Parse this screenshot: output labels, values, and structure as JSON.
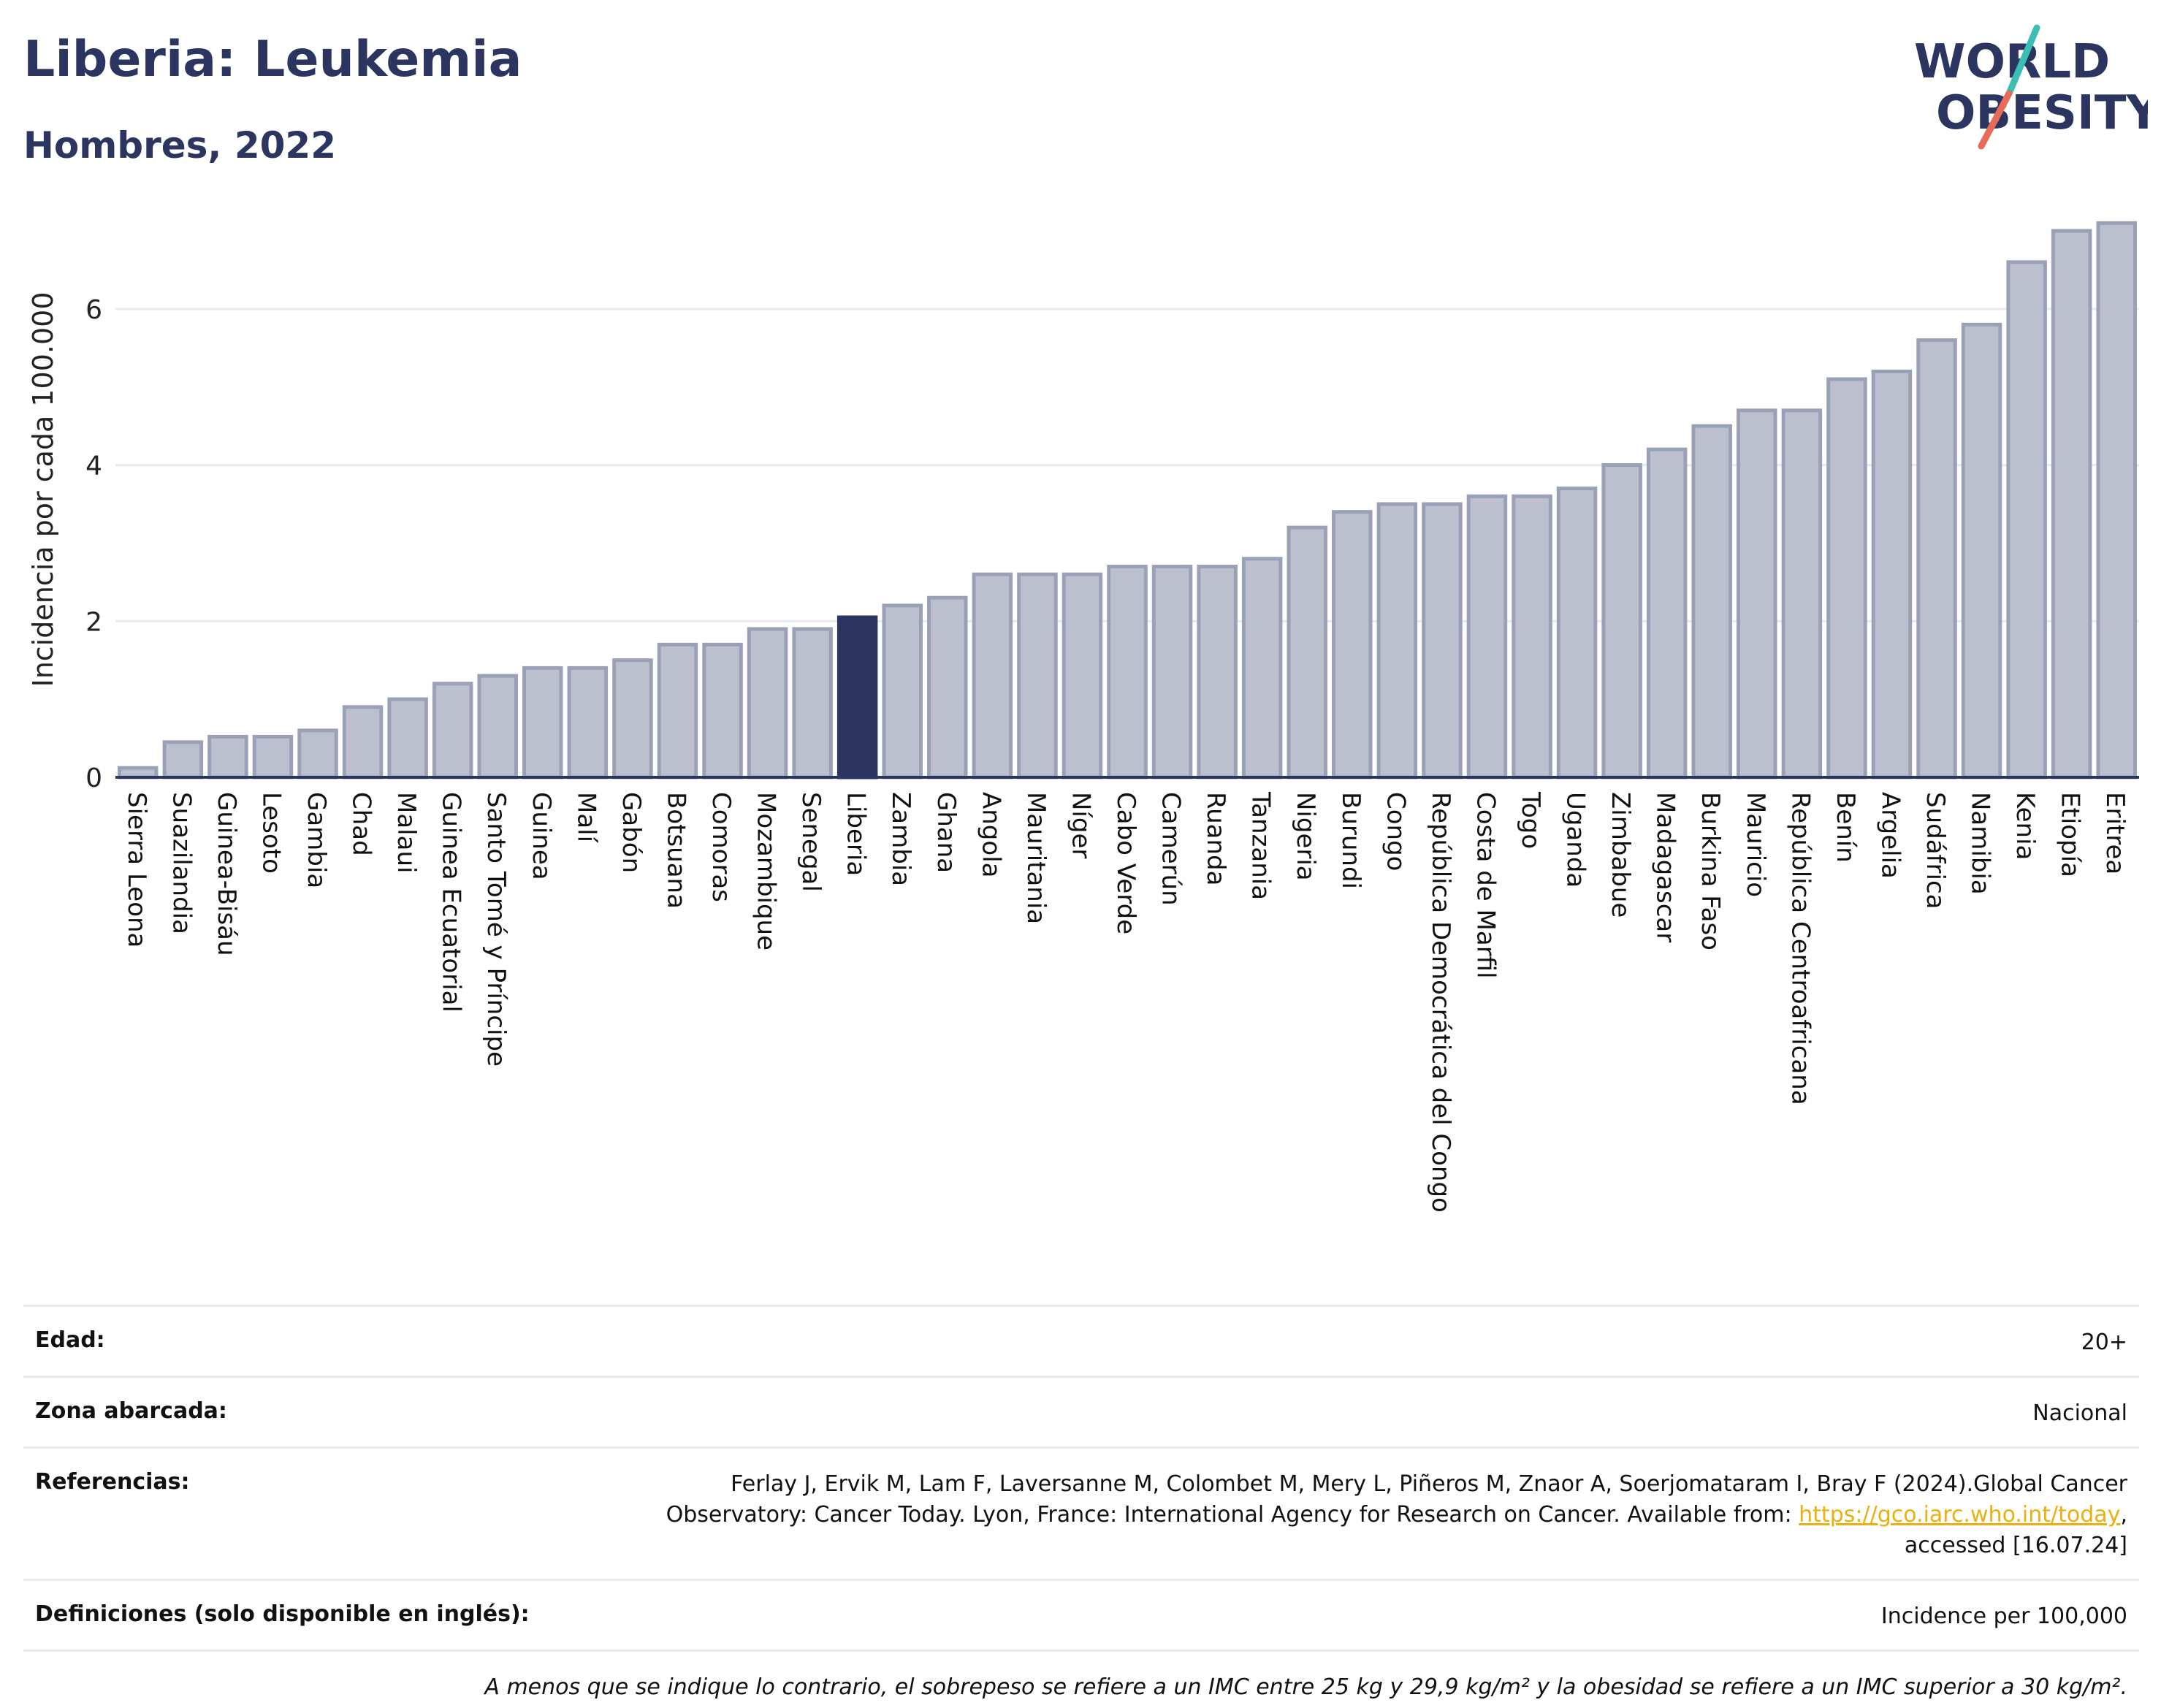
{
  "header": {
    "title": "Liberia: Leukemia",
    "subtitle": "Hombres, 2022"
  },
  "logo": {
    "line1": "WORLD",
    "line2": "OBESITY",
    "colors": {
      "text": "#2b3560",
      "slash_top": "#3bbfb5",
      "slash_bottom": "#e86a57"
    }
  },
  "chart_data": {
    "type": "bar",
    "ylabel": "Incidencia por cada 100.000",
    "xlabel": "",
    "ylim": [
      0,
      7.15
    ],
    "yticks": [
      0,
      2,
      4,
      6
    ],
    "grid": true,
    "highlight": "Liberia",
    "colors": {
      "bar": "#bcc0ce",
      "bar_edge": "#9aa0b6",
      "highlight": "#2b3560"
    },
    "categories": [
      "Sierra Leona",
      "Suazilandia",
      "Guinea-Bisáu",
      "Lesoto",
      "Gambia",
      "Chad",
      "Malaui",
      "Guinea Ecuatorial",
      "Santo Tomé y Príncipe",
      "Guinea",
      "Malí",
      "Gabón",
      "Botsuana",
      "Comoras",
      "Mozambique",
      "Senegal",
      "Liberia",
      "Zambia",
      "Ghana",
      "Angola",
      "Mauritania",
      "Níger",
      "Cabo Verde",
      "Camerún",
      "Ruanda",
      "Tanzania",
      "Nigeria",
      "Burundi",
      "Congo",
      "República Democrática del Congo",
      "Costa de Marfil",
      "Togo",
      "Uganda",
      "Zimbabue",
      "Madagascar",
      "Burkina Faso",
      "Mauricio",
      "República Centroafricana",
      "Benín",
      "Argelia",
      "Sudáfrica",
      "Namibia",
      "Kenia",
      "Etiopía",
      "Eritrea"
    ],
    "values": [
      0.12,
      0.45,
      0.52,
      0.52,
      0.6,
      0.9,
      1.0,
      1.2,
      1.3,
      1.4,
      1.4,
      1.5,
      1.7,
      1.7,
      1.9,
      1.9,
      2.05,
      2.2,
      2.3,
      2.6,
      2.6,
      2.6,
      2.7,
      2.7,
      2.7,
      2.8,
      3.2,
      3.4,
      3.5,
      3.5,
      3.6,
      3.6,
      3.7,
      4.0,
      4.2,
      4.5,
      4.7,
      4.7,
      5.1,
      5.2,
      5.6,
      5.8,
      6.6,
      7.0,
      7.1
    ]
  },
  "info": {
    "rows": [
      {
        "label": "Edad:",
        "value": "20+"
      },
      {
        "label": "Zona abarcada:",
        "value": "Nacional"
      },
      {
        "label": "Referencias:",
        "value_line1": "Ferlay J, Ervik M, Lam F, Laversanne M, Colombet M, Mery L, Piñeros M, Znaor A, Soerjomataram I, Bray F (2024).Global Cancer",
        "value_line2_pre": "Observatory: Cancer Today. Lyon, France: International Agency for Research on Cancer. Available from: ",
        "link": "https://gco.iarc.who.int/today",
        "value_line2_post": ",",
        "value_line3": "accessed [16.07.24]"
      },
      {
        "label": "Definiciones (solo disponible en inglés):",
        "value": "Incidence per 100,000"
      }
    ],
    "footnote": "A menos que se indique lo contrario, el sobrepeso se refiere a un IMC entre 25 kg y 29,9 kg/m² y la obesidad se refiere a un IMC superior a 30 kg/m²."
  }
}
